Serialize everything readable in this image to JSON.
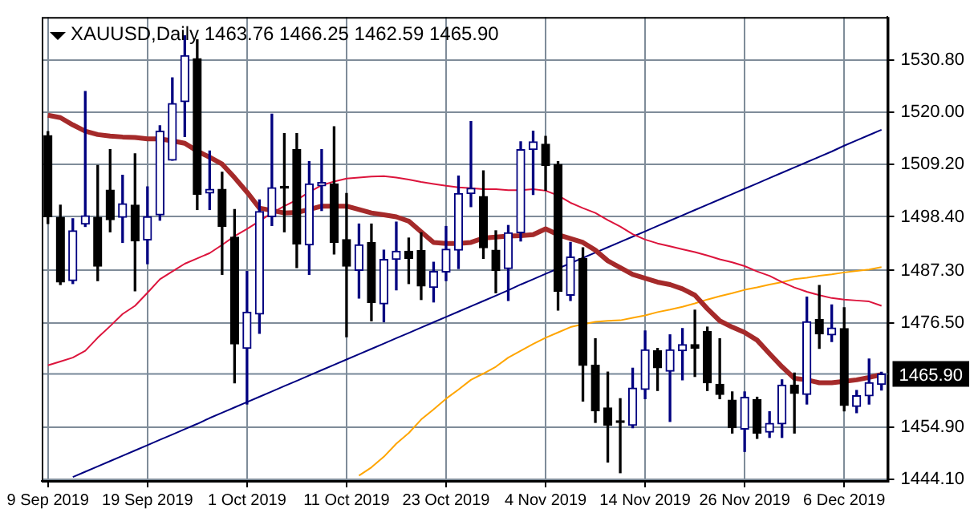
{
  "chart_data": {
    "type": "candlestick",
    "title": "XAUUSD,Daily 1463.76 1466.25 1462.59 1465.90",
    "categories": [
      "9 Sep 2019",
      null,
      null,
      null,
      null,
      null,
      null,
      null,
      "19 Sep 2019",
      null,
      null,
      null,
      null,
      null,
      null,
      null,
      "1 Oct 2019",
      null,
      null,
      null,
      null,
      null,
      null,
      null,
      "11 Oct 2019",
      null,
      null,
      null,
      null,
      null,
      null,
      null,
      "23 Oct 2019",
      null,
      null,
      null,
      null,
      null,
      null,
      null,
      "4 Nov 2019",
      null,
      null,
      null,
      null,
      null,
      null,
      null,
      "14 Nov 2019",
      null,
      null,
      null,
      null,
      null,
      null,
      null,
      "26 Nov 2019",
      null,
      null,
      null,
      null,
      null,
      null,
      null,
      "6 Dec 2019",
      null,
      null,
      null
    ],
    "ohlc": [
      [
        1515.2,
        1516.0,
        1497.0,
        1498.4
      ],
      [
        1498.3,
        1500.8,
        1484.4,
        1484.9
      ],
      [
        1485.2,
        1498.0,
        1484.6,
        1495.5
      ],
      [
        1496.9,
        1524.3,
        1496.4,
        1498.6
      ],
      [
        1498.3,
        1509.0,
        1485.2,
        1488.2
      ],
      [
        1503.9,
        1512.3,
        1495.3,
        1497.8
      ],
      [
        1498.3,
        1507.0,
        1493.1,
        1501.1
      ],
      [
        1500.8,
        1511.4,
        1483.1,
        1493.4
      ],
      [
        1493.6,
        1504.6,
        1488.7,
        1498.4
      ],
      [
        1498.8,
        1517.2,
        1497.7,
        1516.1
      ],
      [
        1510.1,
        1527.1,
        1510.1,
        1521.8
      ],
      [
        1522.2,
        1535.8,
        1515.0,
        1531.7
      ],
      [
        1531.1,
        1535.0,
        1499.9,
        1503.0
      ],
      [
        1503.3,
        1512.0,
        1499.9,
        1504.1
      ],
      [
        1504.1,
        1507.6,
        1486.5,
        1496.4
      ],
      [
        1494.2,
        1499.9,
        1464.1,
        1472.1
      ],
      [
        1471.2,
        1487.1,
        1459.7,
        1478.7
      ],
      [
        1478.3,
        1501.9,
        1474.3,
        1499.5
      ],
      [
        1498.4,
        1519.6,
        1496.6,
        1504.4
      ],
      [
        1504.7,
        1515.6,
        1495.3,
        1504.3
      ],
      [
        1512.3,
        1515.6,
        1487.9,
        1492.8
      ],
      [
        1492.6,
        1509.8,
        1486.5,
        1505.2
      ],
      [
        1504.8,
        1512.3,
        1499.7,
        1505.5
      ],
      [
        1505.2,
        1517.0,
        1490.7,
        1493.1
      ],
      [
        1493.7,
        1503.2,
        1473.6,
        1488.2
      ],
      [
        1487.3,
        1496.9,
        1481.6,
        1492.6
      ],
      [
        1493.1,
        1496.9,
        1476.9,
        1480.7
      ],
      [
        1480.4,
        1491.5,
        1476.7,
        1489.6
      ],
      [
        1489.6,
        1497.3,
        1483.3,
        1491.3
      ],
      [
        1491.3,
        1494.0,
        1484.6,
        1489.8
      ],
      [
        1491.4,
        1495.1,
        1481.3,
        1484.1
      ],
      [
        1483.8,
        1489.0,
        1480.8,
        1487.1
      ],
      [
        1487.0,
        1496.4,
        1485.2,
        1491.7
      ],
      [
        1491.5,
        1506.8,
        1487.7,
        1503.2
      ],
      [
        1503.2,
        1518.1,
        1500.5,
        1504.3
      ],
      [
        1502.6,
        1507.9,
        1489.8,
        1492.0
      ],
      [
        1491.5,
        1495.5,
        1482.7,
        1487.3
      ],
      [
        1487.7,
        1496.6,
        1481.1,
        1495.1
      ],
      [
        1495.1,
        1513.9,
        1493.4,
        1512.3
      ],
      [
        1512.3,
        1516.1,
        1503.0,
        1513.9
      ],
      [
        1513.4,
        1515.0,
        1503.9,
        1509.0
      ],
      [
        1509.2,
        1509.8,
        1479.1,
        1483.0
      ],
      [
        1482.2,
        1493.1,
        1481.1,
        1490.1
      ],
      [
        1489.8,
        1492.0,
        1460.3,
        1467.7
      ],
      [
        1467.7,
        1473.2,
        1455.9,
        1458.3
      ],
      [
        1458.9,
        1466.3,
        1447.7,
        1455.3
      ],
      [
        1456.0,
        1460.8,
        1445.5,
        1455.9
      ],
      [
        1455.3,
        1467.1,
        1454.8,
        1463.0
      ],
      [
        1462.7,
        1474.8,
        1460.8,
        1470.9
      ],
      [
        1470.7,
        1471.2,
        1462.5,
        1467.2
      ],
      [
        1466.5,
        1474.0,
        1456.1,
        1470.9
      ],
      [
        1470.7,
        1475.3,
        1464.7,
        1472.0
      ],
      [
        1472.0,
        1479.1,
        1465.4,
        1471.2
      ],
      [
        1474.7,
        1475.6,
        1462.5,
        1464.1
      ],
      [
        1463.8,
        1473.2,
        1460.8,
        1461.7
      ],
      [
        1460.5,
        1462.2,
        1453.7,
        1454.8
      ],
      [
        1454.5,
        1462.2,
        1449.9,
        1461.1
      ],
      [
        1460.6,
        1461.1,
        1452.6,
        1453.7
      ],
      [
        1453.9,
        1458.1,
        1452.8,
        1455.7
      ],
      [
        1455.6,
        1464.7,
        1452.8,
        1463.6
      ],
      [
        1463.6,
        1466.1,
        1453.7,
        1461.9
      ],
      [
        1461.7,
        1481.8,
        1459.7,
        1476.7
      ],
      [
        1477.2,
        1484.2,
        1471.2,
        1474.2
      ],
      [
        1474.0,
        1480.2,
        1472.6,
        1475.4
      ],
      [
        1475.3,
        1479.6,
        1458.3,
        1459.4
      ],
      [
        1459.2,
        1462.5,
        1457.9,
        1461.4
      ],
      [
        1461.4,
        1469.0,
        1459.7,
        1464.1
      ],
      [
        1463.76,
        1466.25,
        1462.59,
        1465.9
      ]
    ],
    "colors": [
      "#000000",
      "#000000",
      "#000080",
      "#000080",
      "#000000",
      "#000000",
      "#000080",
      "#000000",
      "#000080",
      "#000080",
      "#000080",
      "#000080",
      "#000000",
      "#000080",
      "#000000",
      "#000000",
      "#000080",
      "#000080",
      "#000080",
      "#000000",
      "#000000",
      "#000080",
      "#000080",
      "#000000",
      "#000000",
      "#000080",
      "#000000",
      "#000080",
      "#000080",
      "#000000",
      "#000000",
      "#000080",
      "#000080",
      "#000080",
      "#000080",
      "#000000",
      "#000000",
      "#000080",
      "#000080",
      "#000080",
      "#000000",
      "#000000",
      "#000080",
      "#000000",
      "#000000",
      "#000000",
      "#000000",
      "#000080",
      "#000080",
      "#000000",
      "#000080",
      "#000080",
      "#000000",
      "#000000",
      "#000000",
      "#000000",
      "#000080",
      "#000000",
      "#000080",
      "#000080",
      "#000000",
      "#000080",
      "#000000",
      "#000080",
      "#000000",
      "#000080",
      "#000080",
      "#000080"
    ],
    "series": [
      {
        "type": "line",
        "color": "#a52a2a",
        "values": [
          1519.4,
          1518.9,
          1517.4,
          1516.1,
          1515.4,
          1515.1,
          1514.9,
          1514.8,
          1514.5,
          1514.5,
          1514.1,
          1513.6,
          1512.0,
          1510.7,
          1509.3,
          1506.5,
          1503.5,
          1500.2,
          1499.7,
          1499.2,
          1499.3,
          1499.9,
          1500.6,
          1500.6,
          1500.6,
          1499.9,
          1499.2,
          1498.8,
          1498.4,
          1497.5,
          1495.3,
          1493.1,
          1492.9,
          1492.9,
          1493.1,
          1494.0,
          1494.2,
          1494.4,
          1494.5,
          1494.7,
          1495.9,
          1494.7,
          1493.9,
          1493.1,
          1491.5,
          1489.3,
          1487.9,
          1486.5,
          1485.7,
          1484.9,
          1484.4,
          1483.5,
          1482.2,
          1479.4,
          1476.9,
          1475.6,
          1474.5,
          1472.9,
          1470.1,
          1467.4,
          1465.0,
          1464.7,
          1464.1,
          1464.1,
          1464.4,
          1464.7,
          1465.2,
          1465.8
        ]
      },
      {
        "type": "line",
        "color": "#dc143c",
        "values": [
          1467.7,
          1468.5,
          1469.3,
          1470.7,
          1473.4,
          1475.8,
          1478.3,
          1480.0,
          1482.7,
          1485.5,
          1487.1,
          1488.7,
          1489.8,
          1490.9,
          1492.6,
          1494.4,
          1495.9,
          1497.5,
          1499.2,
          1500.6,
          1501.9,
          1503.5,
          1504.9,
          1505.7,
          1506.3,
          1506.5,
          1506.7,
          1506.8,
          1506.5,
          1506.1,
          1505.6,
          1505.2,
          1504.8,
          1504.5,
          1504.3,
          1504.1,
          1504.1,
          1503.9,
          1503.9,
          1504.1,
          1503.8,
          1502.8,
          1501.3,
          1500.2,
          1499.2,
          1497.7,
          1496.4,
          1494.8,
          1493.7,
          1492.9,
          1492.3,
          1491.7,
          1491.1,
          1490.4,
          1489.6,
          1489.0,
          1488.2,
          1487.1,
          1486.2,
          1484.9,
          1483.8,
          1482.9,
          1482.2,
          1481.6,
          1481.3,
          1481.1,
          1480.9,
          1480.0
        ]
      },
      {
        "type": "line",
        "color": "#ffa500",
        "values": [
          null,
          null,
          null,
          null,
          null,
          null,
          null,
          null,
          null,
          null,
          null,
          null,
          null,
          null,
          null,
          null,
          null,
          null,
          null,
          null,
          null,
          null,
          null,
          null,
          null,
          1444.9,
          1446.6,
          1448.8,
          1451.5,
          1453.7,
          1456.5,
          1458.6,
          1460.8,
          1462.7,
          1464.7,
          1466.0,
          1467.4,
          1469.3,
          1470.7,
          1472.1,
          1473.4,
          1474.5,
          1475.6,
          1476.2,
          1476.7,
          1476.9,
          1477.0,
          1477.5,
          1478.0,
          1478.7,
          1479.2,
          1479.8,
          1480.5,
          1481.3,
          1482.0,
          1482.6,
          1483.3,
          1483.8,
          1484.4,
          1484.9,
          1485.5,
          1485.8,
          1486.2,
          1486.5,
          1486.9,
          1487.2,
          1487.5,
          1488.0
        ]
      },
      {
        "type": "line",
        "color": "#000080",
        "values": [
          null,
          null,
          1444.6,
          1445.7,
          1446.8,
          1447.9,
          1449.0,
          1450.1,
          1451.2,
          1452.3,
          1453.4,
          1454.5,
          1455.6,
          1456.8,
          1457.9,
          1459.0,
          1460.1,
          1461.2,
          1462.3,
          1463.4,
          1464.5,
          1465.6,
          1466.7,
          1467.8,
          1468.9,
          1470.0,
          1471.1,
          1472.2,
          1473.3,
          1474.4,
          1475.5,
          1476.6,
          1477.7,
          1478.8,
          1479.9,
          1481.0,
          1482.1,
          1483.2,
          1484.4,
          1485.5,
          1486.6,
          1487.7,
          1488.8,
          1489.9,
          1491.0,
          1492.1,
          1493.2,
          1494.3,
          1495.4,
          1496.5,
          1497.6,
          1498.7,
          1499.8,
          1500.9,
          1502.0,
          1503.1,
          1504.2,
          1505.3,
          1506.4,
          1507.5,
          1508.6,
          1509.7,
          1510.8,
          1511.9,
          1513.1,
          1514.2,
          1515.3,
          1516.4
        ]
      }
    ],
    "ylim": [
      1443.8,
      1539.7
    ],
    "yticks": [
      {
        "value": 1530.8,
        "label": "1530.80"
      },
      {
        "value": 1520.0,
        "label": "1520.00"
      },
      {
        "value": 1509.2,
        "label": "1509.20"
      },
      {
        "value": 1498.4,
        "label": "1498.40"
      },
      {
        "value": 1487.3,
        "label": "1487.30"
      },
      {
        "value": 1476.5,
        "label": "1476.50"
      },
      {
        "value": 1454.9,
        "label": "1454.90"
      },
      {
        "value": 1444.1,
        "label": "1444.10"
      }
    ],
    "ref_lines": [
      {
        "axis": "y",
        "value": 1465.9,
        "label": "1465.90",
        "color": "#778899"
      }
    ],
    "grid": true,
    "marker": "none"
  }
}
